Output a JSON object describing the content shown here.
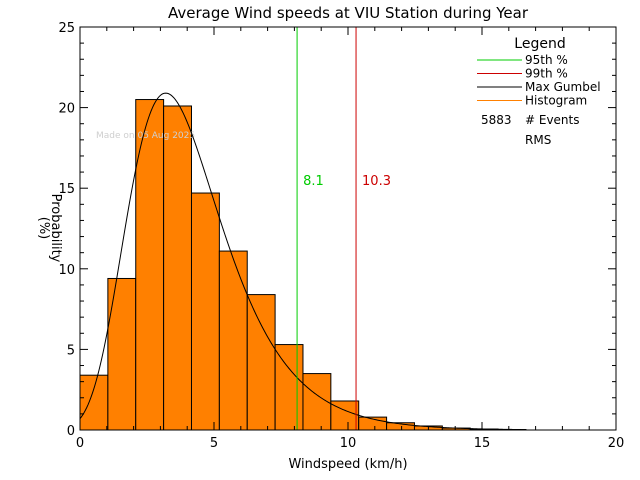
{
  "chart_data": {
    "type": "bar",
    "title": "Average Wind speeds at VIU Station during Year",
    "xlabel": "Windspeed (km/h)",
    "ylabel_line1": "Probability",
    "ylabel_line2": "(%)",
    "xlim": [
      0,
      20
    ],
    "ylim": [
      0,
      25
    ],
    "xticks": [
      0,
      5,
      10,
      15,
      20
    ],
    "yticks": [
      0,
      5,
      10,
      15,
      20,
      25
    ],
    "bin_width": 1.04,
    "bins": [
      {
        "x0": 0.0,
        "value": 3.4
      },
      {
        "x0": 1.04,
        "value": 9.4
      },
      {
        "x0": 2.08,
        "value": 20.5
      },
      {
        "x0": 3.12,
        "value": 20.1
      },
      {
        "x0": 4.16,
        "value": 14.7
      },
      {
        "x0": 5.2,
        "value": 11.1
      },
      {
        "x0": 6.24,
        "value": 8.4
      },
      {
        "x0": 7.28,
        "value": 5.3
      },
      {
        "x0": 8.32,
        "value": 3.5
      },
      {
        "x0": 9.36,
        "value": 1.8
      },
      {
        "x0": 10.4,
        "value": 0.8
      },
      {
        "x0": 11.44,
        "value": 0.45
      },
      {
        "x0": 12.48,
        "value": 0.25
      },
      {
        "x0": 13.52,
        "value": 0.12
      },
      {
        "x0": 14.56,
        "value": 0.06
      },
      {
        "x0": 15.6,
        "value": 0.03
      }
    ],
    "gumbel_mode": 3.2,
    "gumbel_scale": 1.75,
    "percentiles": [
      {
        "value": 8.1,
        "label": "8.1",
        "color": "#00cc00"
      },
      {
        "value": 10.3,
        "label": "10.3",
        "color": "#cc0000"
      }
    ],
    "legend": {
      "title": "Legend",
      "items": [
        {
          "label": "95th %",
          "color": "#00cc00"
        },
        {
          "label": "99th %",
          "color": "#cc0000"
        },
        {
          "label": "Max Gumbel",
          "color": "#000000"
        },
        {
          "label": "Histogram",
          "color": "#ff8000"
        }
      ],
      "events_count": "5883",
      "events_label": "# Events",
      "rms_label": "RMS"
    },
    "watermark": "Made on 05 Aug 2025",
    "colors": {
      "histogram_fill": "#ff8000",
      "histogram_edge": "#000000",
      "axis": "#000000",
      "gumbel": "#000000"
    }
  }
}
